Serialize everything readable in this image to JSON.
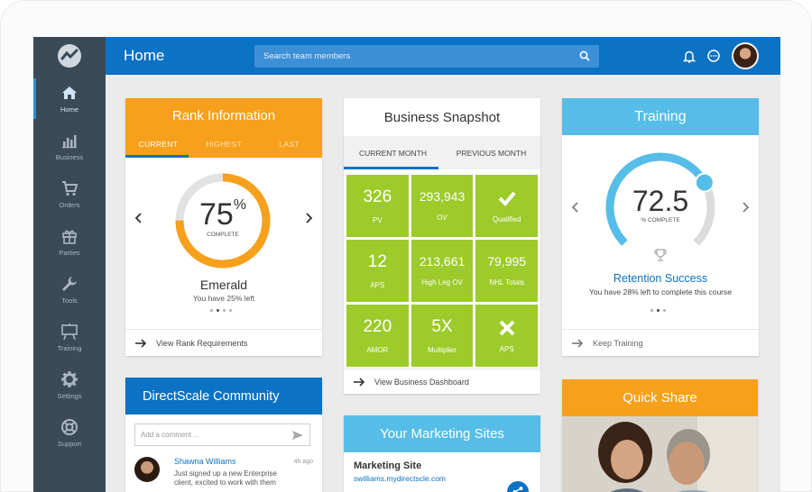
{
  "header": {
    "title": "Home",
    "search_placeholder": "Search team members"
  },
  "sidebar": {
    "items": [
      {
        "label": "Home",
        "icon": "home-icon"
      },
      {
        "label": "Business",
        "icon": "bar-chart-icon"
      },
      {
        "label": "Orders",
        "icon": "cart-icon"
      },
      {
        "label": "Parties",
        "icon": "gift-icon"
      },
      {
        "label": "Tools",
        "icon": "wrench-icon"
      },
      {
        "label": "Training",
        "icon": "easel-icon"
      },
      {
        "label": "Settings",
        "icon": "gear-icon"
      },
      {
        "label": "Support",
        "icon": "lifebuoy-icon"
      }
    ]
  },
  "rank": {
    "title": "Rank Information",
    "tabs": [
      "CURRENT",
      "HIGHEST",
      "LAST"
    ],
    "percent": "75",
    "percent_sign": "%",
    "complete_label": "COMPLETE",
    "progress_fraction": 0.75,
    "rank_name": "Emerald",
    "remaining": "You have 25% left",
    "link": "View Rank Requirements"
  },
  "snapshot": {
    "title": "Business Snapshot",
    "tabs": [
      "CURRENT MONTH",
      "PREVIOUS MONTH"
    ],
    "cells": [
      {
        "value": "326",
        "label": "PV"
      },
      {
        "value": "293,943",
        "label": "OV"
      },
      {
        "value": "",
        "label": "Qualified",
        "icon": "check-icon"
      },
      {
        "value": "12",
        "label": "APS"
      },
      {
        "value": "213,661",
        "label": "High Leg OV"
      },
      {
        "value": "79,995",
        "label": "NHL Totals"
      },
      {
        "value": "220",
        "label": "AMOR"
      },
      {
        "value": "5X",
        "label": "Multiplier"
      },
      {
        "value": "",
        "label": "APS",
        "icon": "x-icon"
      }
    ],
    "link": "View Business Dashboard"
  },
  "training": {
    "title": "Training",
    "value": "72.5",
    "complete_label": "% COMPLETE",
    "progress_fraction": 0.725,
    "course": "Retention Success",
    "remaining": "You have 28% left to complete this course",
    "link": "Keep Training"
  },
  "community": {
    "title": "DirectScale Community",
    "comment_placeholder": "Add a comment ...",
    "post": {
      "name": "Shawna Williams",
      "time": "4h ago",
      "message_1": "Just signed up a new Enterprise",
      "message_2": "client, excited to work with them"
    }
  },
  "marketing": {
    "title": "Your Marketing Sites",
    "site_name": "Marketing Site",
    "site_url": "swilliams.mydirectscle.com"
  },
  "quickshare": {
    "title": "Quick Share"
  },
  "colors": {
    "primary": "#0c72c4",
    "orange": "#f7a01b",
    "green": "#9ccb2a",
    "sky": "#56bde8",
    "sidebar": "#3a4a57"
  }
}
